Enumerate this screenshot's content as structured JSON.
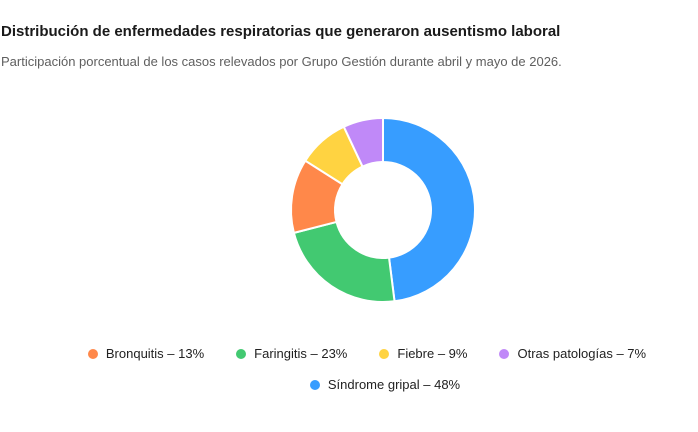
{
  "chart_data": {
    "type": "pie",
    "variant": "donut",
    "title": "Distribución de enfermedades respiratorias que generaron ausentismo laboral",
    "subtitle": "Participación porcentual de los casos relevados por Grupo Gestión durante abril y mayo de 2026.",
    "unit": "%",
    "slices": [
      {
        "label": "Síndrome gripal",
        "value": 48,
        "color": "#379dff",
        "legend_text": "Síndrome gripal – 48%"
      },
      {
        "label": "Faringitis",
        "value": 23,
        "color": "#42c971",
        "legend_text": "Faringitis – 23%"
      },
      {
        "label": "Bronquitis",
        "value": 13,
        "color": "#ff884a",
        "legend_text": "Bronquitis – 13%"
      },
      {
        "label": "Fiebre",
        "value": 9,
        "color": "#ffd341",
        "legend_text": "Fiebre – 9%"
      },
      {
        "label": "Otras patologías",
        "value": 7,
        "color": "#c089f8",
        "legend_text": "Otras patologías – 7%"
      }
    ],
    "legend": {
      "placement": "bottom-center",
      "rows": [
        [
          "Bronquitis",
          "Faringitis",
          "Fiebre",
          "Otras patologías"
        ],
        [
          "Síndrome gripal"
        ]
      ]
    }
  }
}
